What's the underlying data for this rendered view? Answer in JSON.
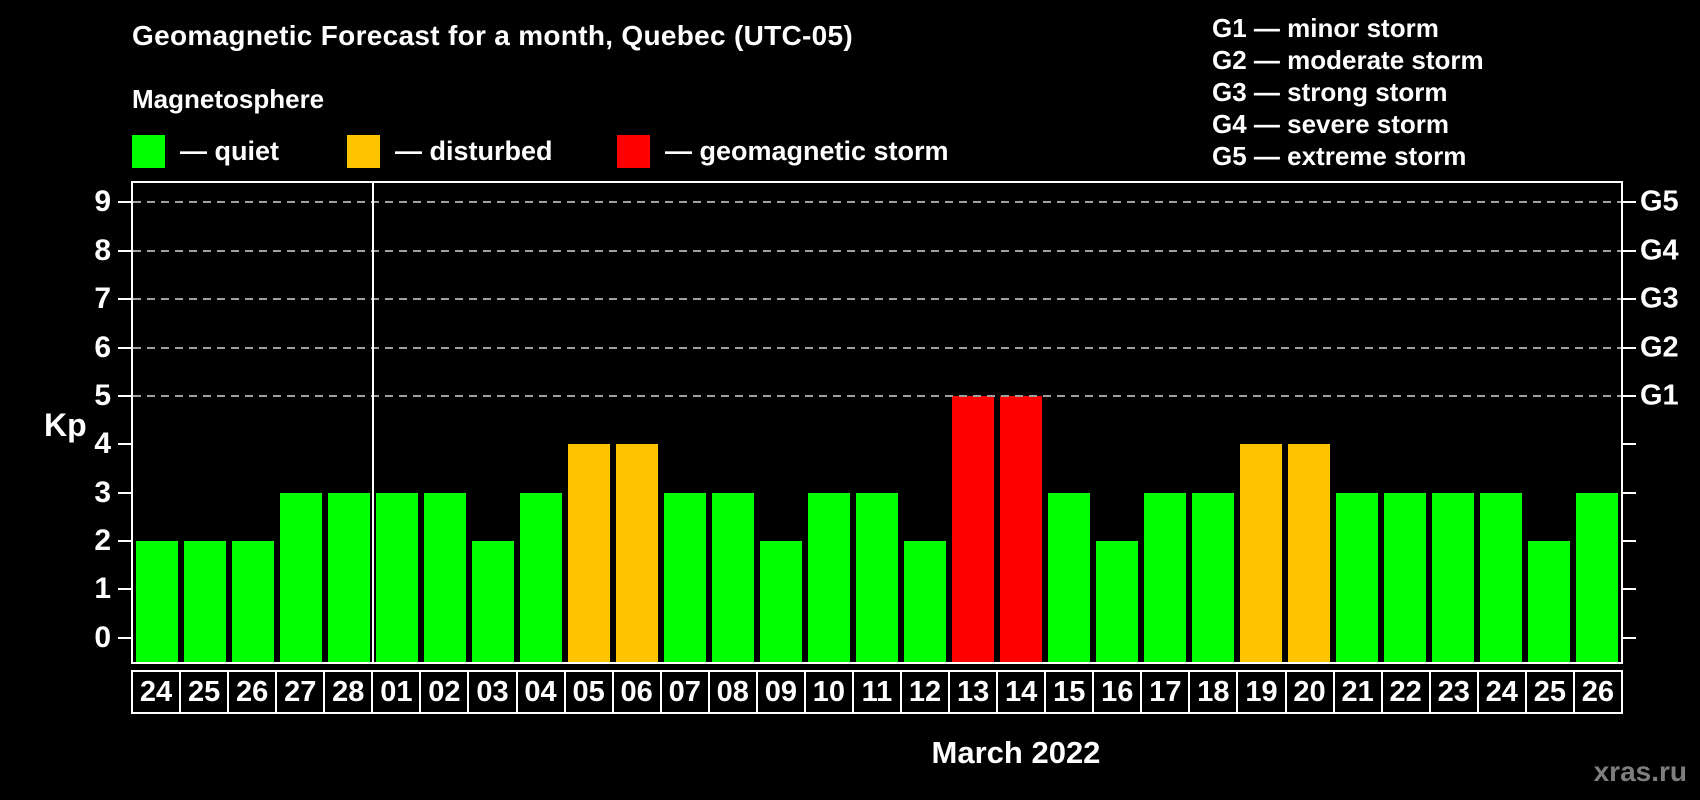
{
  "title": "Geomagnetic Forecast for a month, Quebec (UTC-05)",
  "subtitle": "Magnetosphere",
  "legend": {
    "items": [
      {
        "status": "quiet",
        "label": "— quiet",
        "color": "#00ff00"
      },
      {
        "status": "disturbed",
        "label": "— disturbed",
        "color": "#ffc300"
      },
      {
        "status": "storm",
        "label": "— geomagnetic storm",
        "color": "#ff0000"
      }
    ]
  },
  "g_scale_legend": [
    "G1 — minor storm",
    "G2 — moderate storm",
    "G3 — strong storm",
    "G4 — severe storm",
    "G5 — extreme storm"
  ],
  "axis": {
    "ylabel": "Kp",
    "left_tick_values": [
      0,
      1,
      2,
      3,
      4,
      5,
      6,
      7,
      8,
      9
    ],
    "right_tick_values": [
      0,
      1,
      2,
      3,
      4,
      5,
      6,
      7,
      8,
      9
    ],
    "grid_kp": [
      5,
      6,
      7,
      8,
      9
    ],
    "right_axis_labels": [
      {
        "kp": 5,
        "label": "G1"
      },
      {
        "kp": 6,
        "label": "G2"
      },
      {
        "kp": 7,
        "label": "G3"
      },
      {
        "kp": 8,
        "label": "G4"
      },
      {
        "kp": 9,
        "label": "G5"
      }
    ]
  },
  "xlabel": "March 2022",
  "watermark": "xras.ru",
  "colors": {
    "quiet": "#00ff00",
    "disturbed": "#ffc300",
    "storm": "#ff0000",
    "axis": "#ffffff",
    "grid": "#a0a0a0",
    "watermark": "#7e7e7e"
  },
  "chart_data": {
    "type": "bar",
    "title": "Geomagnetic Forecast for a month, Quebec (UTC-05)",
    "xlabel": "March 2022",
    "ylabel": "Kp",
    "ylim": [
      -0.5,
      9.4
    ],
    "grid": "horizontal dashed lines at Kp 5,6,7,8,9 (G1–G5 levels)",
    "legend_position": "top-left",
    "categories": [
      "24",
      "25",
      "26",
      "27",
      "28",
      "01",
      "02",
      "03",
      "04",
      "05",
      "06",
      "07",
      "08",
      "09",
      "10",
      "11",
      "12",
      "13",
      "14",
      "15",
      "16",
      "17",
      "18",
      "19",
      "20",
      "21",
      "22",
      "23",
      "24",
      "25",
      "26"
    ],
    "values": [
      2,
      2,
      2,
      3,
      3,
      3,
      3,
      2,
      3,
      4,
      4,
      3,
      3,
      2,
      3,
      3,
      2,
      5,
      5,
      3,
      2,
      3,
      3,
      4,
      4,
      3,
      3,
      3,
      3,
      2,
      3
    ],
    "statuses": [
      "quiet",
      "quiet",
      "quiet",
      "quiet",
      "quiet",
      "quiet",
      "quiet",
      "quiet",
      "quiet",
      "disturbed",
      "disturbed",
      "quiet",
      "quiet",
      "quiet",
      "quiet",
      "quiet",
      "quiet",
      "storm",
      "storm",
      "quiet",
      "quiet",
      "quiet",
      "quiet",
      "disturbed",
      "disturbed",
      "quiet",
      "quiet",
      "quiet",
      "quiet",
      "quiet",
      "quiet"
    ],
    "month_separator_after_index": 4
  }
}
